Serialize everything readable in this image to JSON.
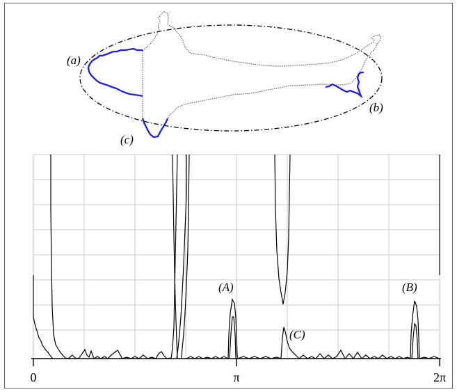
{
  "top_panel": {
    "labels": {
      "a": "(a)",
      "b": "(b)",
      "c": "(c)"
    },
    "colors": {
      "highlight": "#1f1fe0",
      "outline": "#000000"
    }
  },
  "bottom_panel": {
    "peak_labels": {
      "A": "(A)",
      "B": "(B)",
      "C": "(C)"
    },
    "x_ticks": [
      "0",
      "π",
      "2π"
    ]
  }
}
